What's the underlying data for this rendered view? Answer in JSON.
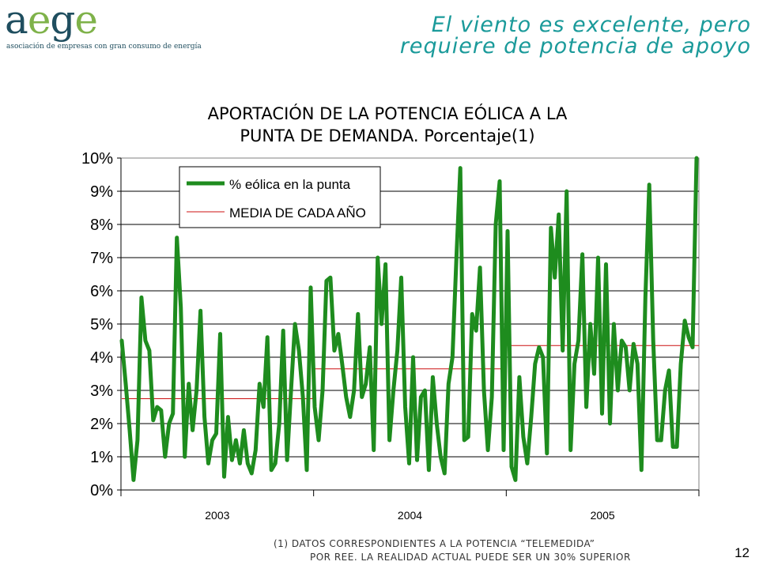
{
  "logo": {
    "word_a": "a",
    "word_e1": "e",
    "word_g": "g",
    "word_e2": "e",
    "subtitle": "asociación de empresas con gran consumo de energía"
  },
  "headline": {
    "line1": "El viento es excelente, pero",
    "line2": "requiere de potencia de apoyo"
  },
  "footnote": {
    "line1": "(1) DATOS CORRESPONDIENTES A LA POTENCIA “TELEMEDIDA”",
    "line2": "POR REE. LA REALIDAD ACTUAL PUEDE SER UN 30% SUPERIOR"
  },
  "page_number": "12",
  "chart_data": {
    "type": "line",
    "title_line1": "APORTACIÓN DE LA POTENCIA EÓLICA A LA",
    "title_line2": "PUNTA DE DEMANDA. Porcentaje(1)",
    "xlabel": "",
    "ylabel": "",
    "ylim": [
      0,
      10
    ],
    "y_ticks": [
      "0%",
      "1%",
      "2%",
      "3%",
      "4%",
      "5%",
      "6%",
      "7%",
      "8%",
      "9%",
      "10%"
    ],
    "x_ticks": [
      "2003",
      "2004",
      "2005"
    ],
    "grid": "horizontal",
    "legend_position": "top-left",
    "colors": {
      "series": "#1e8c1e",
      "mean": "#cc1111"
    },
    "series": [
      {
        "name": "% eólica en la punta",
        "values": [
          4.5,
          3.2,
          1.8,
          0.3,
          1.5,
          5.8,
          4.5,
          4.2,
          2.1,
          2.5,
          2.4,
          1.0,
          2.0,
          2.3,
          7.6,
          5.5,
          1.0,
          3.2,
          1.8,
          3.0,
          5.4,
          2.2,
          0.8,
          1.5,
          1.7,
          4.7,
          0.4,
          2.2,
          0.9,
          1.5,
          0.8,
          1.8,
          0.8,
          0.5,
          1.2,
          3.2,
          2.5,
          4.6,
          0.6,
          0.8,
          2.0,
          4.8,
          0.9,
          3.0,
          5.0,
          4.2,
          2.8,
          0.6,
          6.1,
          2.5,
          1.5,
          3.0,
          6.3,
          6.4,
          4.2,
          4.7,
          3.8,
          2.8,
          2.2,
          3.0,
          5.3,
          2.8,
          3.2,
          4.3,
          1.2,
          7.0,
          5.0,
          6.8,
          1.5,
          3.0,
          4.2,
          6.4,
          2.5,
          0.8,
          4.0,
          0.9,
          2.8,
          3.0,
          0.6,
          3.4,
          2.0,
          1.0,
          0.5,
          3.2,
          4.0,
          7.0,
          9.7,
          1.5,
          1.6,
          5.3,
          4.8,
          6.7,
          3.0,
          1.2,
          2.8,
          8.0,
          9.3,
          1.2,
          7.8,
          0.7,
          0.3,
          3.4,
          1.6,
          0.8,
          2.2,
          3.8,
          4.3,
          4.0,
          1.1,
          7.9,
          6.4,
          8.3,
          4.2,
          9.0,
          1.2,
          3.8,
          4.5,
          7.1,
          2.5,
          5.0,
          3.5,
          7.0,
          2.3,
          6.8,
          2.0,
          5.0,
          3.0,
          4.5,
          4.3,
          3.0,
          4.4,
          3.8,
          0.6,
          5.8,
          9.2,
          4.5,
          1.5,
          1.5,
          3.0,
          3.6,
          1.3,
          1.3,
          3.8,
          5.1,
          4.6,
          4.3,
          10.0
        ]
      },
      {
        "name": "MEDIA DE CADA AÑO",
        "segments": [
          {
            "x_start": 0,
            "x_end": 48.5,
            "value": 2.75
          },
          {
            "x_start": 48.5,
            "x_end": 96.5,
            "value": 3.65
          },
          {
            "x_start": 96.5,
            "x_end": 144,
            "value": 4.35
          }
        ]
      }
    ]
  }
}
